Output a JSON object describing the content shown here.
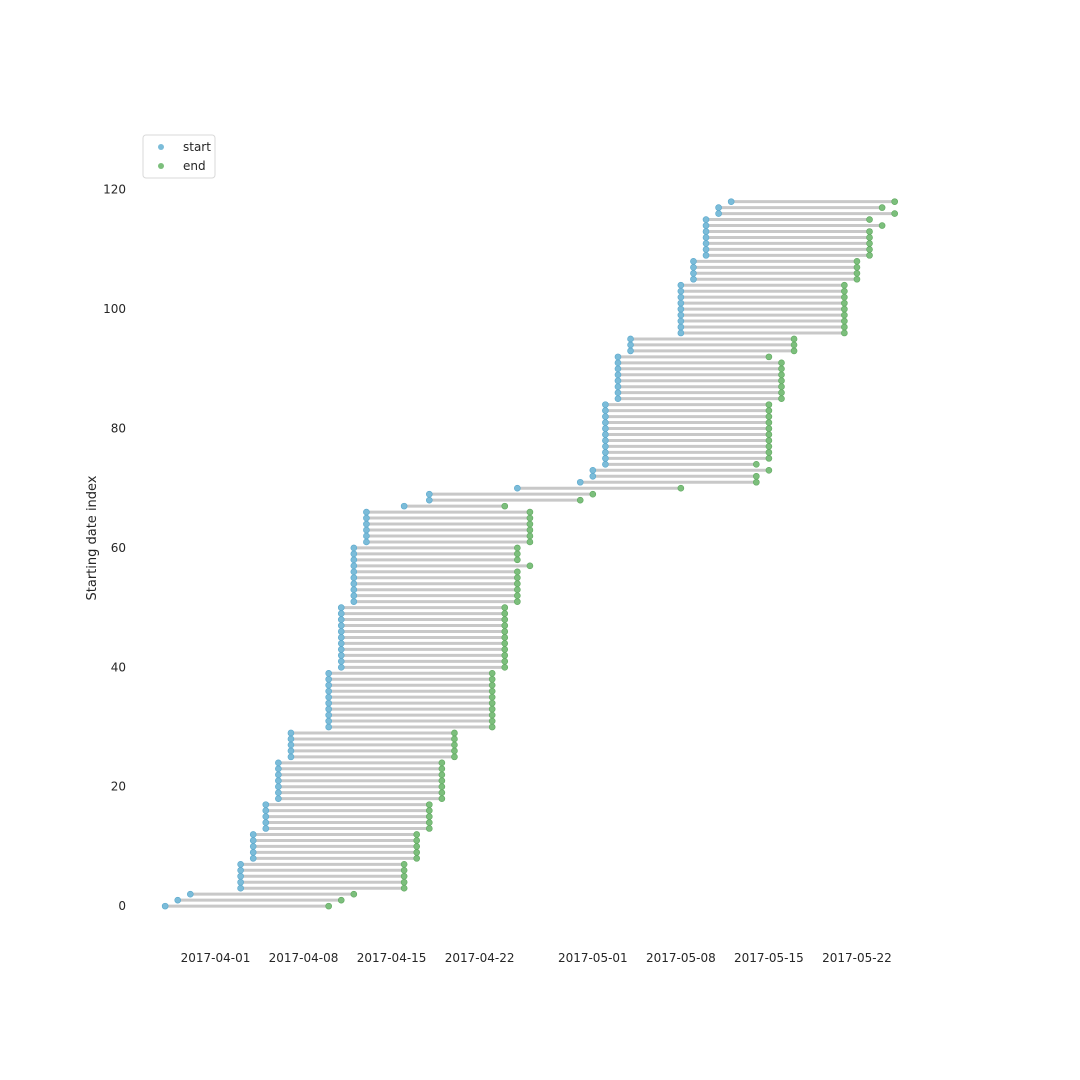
{
  "chart_data": {
    "type": "scatter",
    "subtype": "dumbbell",
    "title": "",
    "xlabel": "",
    "ylabel": "Starting date index",
    "x_range": [
      "2017-03-26",
      "2017-05-29"
    ],
    "y_range": [
      -4,
      130
    ],
    "x_ticks": [
      "2017-04-01",
      "2017-04-08",
      "2017-04-15",
      "2017-04-22",
      "2017-05-01",
      "2017-05-08",
      "2017-05-15",
      "2017-05-22"
    ],
    "y_ticks": [
      0,
      20,
      40,
      60,
      80,
      100,
      120
    ],
    "grid": false,
    "legend": {
      "position": "top-left",
      "entries": [
        {
          "label": "start",
          "color": "#7bbcd9"
        },
        {
          "label": "end",
          "color": "#7cbf7c"
        }
      ]
    },
    "colors": {
      "start": "#7bbcd9",
      "end": "#7cbf7c",
      "line": "#c8c8c8"
    },
    "series": [
      {
        "name": "start",
        "points": [
          [
            0,
            "2017-03-28"
          ],
          [
            1,
            "2017-03-29"
          ],
          [
            2,
            "2017-03-30"
          ],
          [
            3,
            "2017-04-03"
          ],
          [
            4,
            "2017-04-03"
          ],
          [
            5,
            "2017-04-03"
          ],
          [
            6,
            "2017-04-03"
          ],
          [
            7,
            "2017-04-03"
          ],
          [
            8,
            "2017-04-04"
          ],
          [
            9,
            "2017-04-04"
          ],
          [
            10,
            "2017-04-04"
          ],
          [
            11,
            "2017-04-04"
          ],
          [
            12,
            "2017-04-04"
          ],
          [
            13,
            "2017-04-05"
          ],
          [
            14,
            "2017-04-05"
          ],
          [
            15,
            "2017-04-05"
          ],
          [
            16,
            "2017-04-05"
          ],
          [
            17,
            "2017-04-05"
          ],
          [
            18,
            "2017-04-06"
          ],
          [
            19,
            "2017-04-06"
          ],
          [
            20,
            "2017-04-06"
          ],
          [
            21,
            "2017-04-06"
          ],
          [
            22,
            "2017-04-06"
          ],
          [
            23,
            "2017-04-06"
          ],
          [
            24,
            "2017-04-06"
          ],
          [
            25,
            "2017-04-07"
          ],
          [
            26,
            "2017-04-07"
          ],
          [
            27,
            "2017-04-07"
          ],
          [
            28,
            "2017-04-07"
          ],
          [
            29,
            "2017-04-07"
          ],
          [
            30,
            "2017-04-10"
          ],
          [
            31,
            "2017-04-10"
          ],
          [
            32,
            "2017-04-10"
          ],
          [
            33,
            "2017-04-10"
          ],
          [
            34,
            "2017-04-10"
          ],
          [
            35,
            "2017-04-10"
          ],
          [
            36,
            "2017-04-10"
          ],
          [
            37,
            "2017-04-10"
          ],
          [
            38,
            "2017-04-10"
          ],
          [
            39,
            "2017-04-10"
          ],
          [
            40,
            "2017-04-11"
          ],
          [
            41,
            "2017-04-11"
          ],
          [
            42,
            "2017-04-11"
          ],
          [
            43,
            "2017-04-11"
          ],
          [
            44,
            "2017-04-11"
          ],
          [
            45,
            "2017-04-11"
          ],
          [
            46,
            "2017-04-11"
          ],
          [
            47,
            "2017-04-11"
          ],
          [
            48,
            "2017-04-11"
          ],
          [
            49,
            "2017-04-11"
          ],
          [
            50,
            "2017-04-11"
          ],
          [
            51,
            "2017-04-12"
          ],
          [
            52,
            "2017-04-12"
          ],
          [
            53,
            "2017-04-12"
          ],
          [
            54,
            "2017-04-12"
          ],
          [
            55,
            "2017-04-12"
          ],
          [
            56,
            "2017-04-12"
          ],
          [
            57,
            "2017-04-12"
          ],
          [
            58,
            "2017-04-12"
          ],
          [
            59,
            "2017-04-12"
          ],
          [
            60,
            "2017-04-12"
          ],
          [
            61,
            "2017-04-13"
          ],
          [
            62,
            "2017-04-13"
          ],
          [
            63,
            "2017-04-13"
          ],
          [
            64,
            "2017-04-13"
          ],
          [
            65,
            "2017-04-13"
          ],
          [
            66,
            "2017-04-13"
          ],
          [
            67,
            "2017-04-16"
          ],
          [
            68,
            "2017-04-18"
          ],
          [
            69,
            "2017-04-18"
          ],
          [
            70,
            "2017-04-25"
          ],
          [
            71,
            "2017-04-30"
          ],
          [
            72,
            "2017-05-01"
          ],
          [
            73,
            "2017-05-01"
          ],
          [
            74,
            "2017-05-02"
          ],
          [
            75,
            "2017-05-02"
          ],
          [
            76,
            "2017-05-02"
          ],
          [
            77,
            "2017-05-02"
          ],
          [
            78,
            "2017-05-02"
          ],
          [
            79,
            "2017-05-02"
          ],
          [
            80,
            "2017-05-02"
          ],
          [
            81,
            "2017-05-02"
          ],
          [
            82,
            "2017-05-02"
          ],
          [
            83,
            "2017-05-02"
          ],
          [
            84,
            "2017-05-02"
          ],
          [
            85,
            "2017-05-03"
          ],
          [
            86,
            "2017-05-03"
          ],
          [
            87,
            "2017-05-03"
          ],
          [
            88,
            "2017-05-03"
          ],
          [
            89,
            "2017-05-03"
          ],
          [
            90,
            "2017-05-03"
          ],
          [
            91,
            "2017-05-03"
          ],
          [
            92,
            "2017-05-03"
          ],
          [
            93,
            "2017-05-04"
          ],
          [
            94,
            "2017-05-04"
          ],
          [
            95,
            "2017-05-04"
          ],
          [
            96,
            "2017-05-08"
          ],
          [
            97,
            "2017-05-08"
          ],
          [
            98,
            "2017-05-08"
          ],
          [
            99,
            "2017-05-08"
          ],
          [
            100,
            "2017-05-08"
          ],
          [
            101,
            "2017-05-08"
          ],
          [
            102,
            "2017-05-08"
          ],
          [
            103,
            "2017-05-08"
          ],
          [
            104,
            "2017-05-08"
          ],
          [
            105,
            "2017-05-09"
          ],
          [
            106,
            "2017-05-09"
          ],
          [
            107,
            "2017-05-09"
          ],
          [
            108,
            "2017-05-09"
          ],
          [
            109,
            "2017-05-10"
          ],
          [
            110,
            "2017-05-10"
          ],
          [
            111,
            "2017-05-10"
          ],
          [
            112,
            "2017-05-10"
          ],
          [
            113,
            "2017-05-10"
          ],
          [
            114,
            "2017-05-10"
          ],
          [
            115,
            "2017-05-10"
          ],
          [
            116,
            "2017-05-11"
          ],
          [
            117,
            "2017-05-11"
          ],
          [
            118,
            "2017-05-12"
          ]
        ]
      },
      {
        "name": "end",
        "points": [
          [
            0,
            "2017-04-10"
          ],
          [
            1,
            "2017-04-11"
          ],
          [
            2,
            "2017-04-12"
          ],
          [
            3,
            "2017-04-16"
          ],
          [
            4,
            "2017-04-16"
          ],
          [
            5,
            "2017-04-16"
          ],
          [
            6,
            "2017-04-16"
          ],
          [
            7,
            "2017-04-16"
          ],
          [
            8,
            "2017-04-17"
          ],
          [
            9,
            "2017-04-17"
          ],
          [
            10,
            "2017-04-17"
          ],
          [
            11,
            "2017-04-17"
          ],
          [
            12,
            "2017-04-17"
          ],
          [
            13,
            "2017-04-18"
          ],
          [
            14,
            "2017-04-18"
          ],
          [
            15,
            "2017-04-18"
          ],
          [
            16,
            "2017-04-18"
          ],
          [
            17,
            "2017-04-18"
          ],
          [
            18,
            "2017-04-19"
          ],
          [
            19,
            "2017-04-19"
          ],
          [
            20,
            "2017-04-19"
          ],
          [
            21,
            "2017-04-19"
          ],
          [
            22,
            "2017-04-19"
          ],
          [
            23,
            "2017-04-19"
          ],
          [
            24,
            "2017-04-19"
          ],
          [
            25,
            "2017-04-20"
          ],
          [
            26,
            "2017-04-20"
          ],
          [
            27,
            "2017-04-20"
          ],
          [
            28,
            "2017-04-20"
          ],
          [
            29,
            "2017-04-20"
          ],
          [
            30,
            "2017-04-23"
          ],
          [
            31,
            "2017-04-23"
          ],
          [
            32,
            "2017-04-23"
          ],
          [
            33,
            "2017-04-23"
          ],
          [
            34,
            "2017-04-23"
          ],
          [
            35,
            "2017-04-23"
          ],
          [
            36,
            "2017-04-23"
          ],
          [
            37,
            "2017-04-23"
          ],
          [
            38,
            "2017-04-23"
          ],
          [
            39,
            "2017-04-23"
          ],
          [
            40,
            "2017-04-24"
          ],
          [
            41,
            "2017-04-24"
          ],
          [
            42,
            "2017-04-24"
          ],
          [
            43,
            "2017-04-24"
          ],
          [
            44,
            "2017-04-24"
          ],
          [
            45,
            "2017-04-24"
          ],
          [
            46,
            "2017-04-24"
          ],
          [
            47,
            "2017-04-24"
          ],
          [
            48,
            "2017-04-24"
          ],
          [
            49,
            "2017-04-24"
          ],
          [
            50,
            "2017-04-24"
          ],
          [
            51,
            "2017-04-25"
          ],
          [
            52,
            "2017-04-25"
          ],
          [
            53,
            "2017-04-25"
          ],
          [
            54,
            "2017-04-25"
          ],
          [
            55,
            "2017-04-25"
          ],
          [
            56,
            "2017-04-25"
          ],
          [
            57,
            "2017-04-26"
          ],
          [
            58,
            "2017-04-25"
          ],
          [
            59,
            "2017-04-25"
          ],
          [
            60,
            "2017-04-25"
          ],
          [
            61,
            "2017-04-26"
          ],
          [
            62,
            "2017-04-26"
          ],
          [
            63,
            "2017-04-26"
          ],
          [
            64,
            "2017-04-26"
          ],
          [
            65,
            "2017-04-26"
          ],
          [
            66,
            "2017-04-26"
          ],
          [
            67,
            "2017-04-24"
          ],
          [
            68,
            "2017-04-30"
          ],
          [
            69,
            "2017-05-01"
          ],
          [
            70,
            "2017-05-08"
          ],
          [
            71,
            "2017-05-14"
          ],
          [
            72,
            "2017-05-14"
          ],
          [
            73,
            "2017-05-15"
          ],
          [
            74,
            "2017-05-14"
          ],
          [
            75,
            "2017-05-15"
          ],
          [
            76,
            "2017-05-15"
          ],
          [
            77,
            "2017-05-15"
          ],
          [
            78,
            "2017-05-15"
          ],
          [
            79,
            "2017-05-15"
          ],
          [
            80,
            "2017-05-15"
          ],
          [
            81,
            "2017-05-15"
          ],
          [
            82,
            "2017-05-15"
          ],
          [
            83,
            "2017-05-15"
          ],
          [
            84,
            "2017-05-15"
          ],
          [
            85,
            "2017-05-16"
          ],
          [
            86,
            "2017-05-16"
          ],
          [
            87,
            "2017-05-16"
          ],
          [
            88,
            "2017-05-16"
          ],
          [
            89,
            "2017-05-16"
          ],
          [
            90,
            "2017-05-16"
          ],
          [
            91,
            "2017-05-16"
          ],
          [
            92,
            "2017-05-15"
          ],
          [
            93,
            "2017-05-17"
          ],
          [
            94,
            "2017-05-17"
          ],
          [
            95,
            "2017-05-17"
          ],
          [
            96,
            "2017-05-21"
          ],
          [
            97,
            "2017-05-21"
          ],
          [
            98,
            "2017-05-21"
          ],
          [
            99,
            "2017-05-21"
          ],
          [
            100,
            "2017-05-21"
          ],
          [
            101,
            "2017-05-21"
          ],
          [
            102,
            "2017-05-21"
          ],
          [
            103,
            "2017-05-21"
          ],
          [
            104,
            "2017-05-21"
          ],
          [
            105,
            "2017-05-22"
          ],
          [
            106,
            "2017-05-22"
          ],
          [
            107,
            "2017-05-22"
          ],
          [
            108,
            "2017-05-22"
          ],
          [
            109,
            "2017-05-23"
          ],
          [
            110,
            "2017-05-23"
          ],
          [
            111,
            "2017-05-23"
          ],
          [
            112,
            "2017-05-23"
          ],
          [
            113,
            "2017-05-23"
          ],
          [
            114,
            "2017-05-24"
          ],
          [
            115,
            "2017-05-23"
          ],
          [
            116,
            "2017-05-25"
          ],
          [
            117,
            "2017-05-24"
          ],
          [
            118,
            "2017-05-25"
          ]
        ]
      }
    ]
  }
}
